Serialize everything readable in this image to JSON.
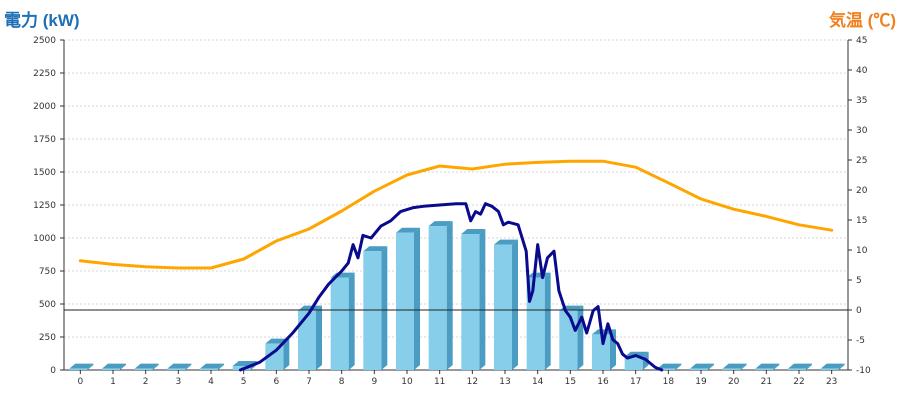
{
  "chart_data": {
    "type": "bar",
    "left_axis_title": "電力 (kW)",
    "right_axis_title": "気温 (℃)",
    "categories": [
      "0",
      "1",
      "2",
      "3",
      "4",
      "5",
      "6",
      "7",
      "8",
      "9",
      "10",
      "11",
      "12",
      "13",
      "14",
      "15",
      "16",
      "17",
      "18",
      "19",
      "20",
      "21",
      "22",
      "23"
    ],
    "y_left": {
      "min": 0,
      "max": 2500,
      "ticks": [
        0,
        250,
        500,
        750,
        1000,
        1250,
        1500,
        1750,
        2000,
        2250,
        2500
      ]
    },
    "y_right": {
      "min": -10,
      "max": 45,
      "ticks": [
        -10,
        -5,
        0,
        5,
        10,
        15,
        20,
        25,
        30,
        35,
        40,
        45
      ]
    },
    "reference_line": {
      "axis": "right",
      "value": 0
    },
    "grid": true,
    "colors": {
      "bar": "#87ceeb",
      "bar_side": "#4a9cc2",
      "power_line": "#0a0a8c",
      "temp_line": "#ffa500",
      "left_title": "#1f6fb5",
      "right_title": "#f08020"
    },
    "series": [
      {
        "axis": "left",
        "kind": "bar",
        "x": [
          0,
          1,
          2,
          3,
          4,
          5,
          6,
          7,
          8,
          9,
          10,
          11,
          12,
          13,
          14,
          15,
          16,
          17,
          18,
          19,
          20,
          21,
          22,
          23
        ],
        "values": [
          10,
          10,
          10,
          10,
          10,
          30,
          200,
          450,
          700,
          900,
          1040,
          1090,
          1030,
          950,
          700,
          450,
          270,
          100,
          10,
          10,
          10,
          10,
          10,
          10
        ]
      },
      {
        "axis": "left",
        "kind": "line",
        "x": [
          4.9,
          5,
          5.5,
          6,
          6.5,
          7,
          7.3,
          7.6,
          8,
          8.2,
          8.35,
          8.5,
          8.65,
          8.9,
          9.2,
          9.5,
          9.8,
          10.2,
          10.5,
          11,
          11.5,
          11.8,
          11.95,
          12.1,
          12.25,
          12.4,
          12.6,
          12.8,
          12.95,
          13.1,
          13.4,
          13.65,
          13.75,
          13.85,
          14,
          14.15,
          14.3,
          14.5,
          14.65,
          14.85,
          15,
          15.15,
          15.35,
          15.5,
          15.7,
          15.85,
          16,
          16.15,
          16.3,
          16.45,
          16.6,
          16.75,
          17,
          17.3,
          17.6,
          17.8
        ],
        "values": [
          0,
          10,
          60,
          150,
          280,
          430,
          550,
          650,
          750,
          810,
          950,
          850,
          1020,
          1000,
          1090,
          1130,
          1200,
          1230,
          1240,
          1250,
          1260,
          1260,
          1130,
          1200,
          1180,
          1260,
          1240,
          1200,
          1100,
          1120,
          1100,
          900,
          520,
          600,
          950,
          700,
          850,
          900,
          600,
          450,
          400,
          300,
          400,
          280,
          450,
          480,
          200,
          350,
          230,
          200,
          120,
          90,
          110,
          80,
          20,
          0
        ]
      },
      {
        "axis": "right",
        "kind": "line",
        "x": [
          0,
          1,
          2,
          3,
          4,
          5,
          6,
          7,
          8,
          9,
          10,
          11,
          12,
          13,
          14,
          15,
          16,
          17,
          18,
          19,
          20,
          21,
          22,
          23
        ],
        "values": [
          8.2,
          7.6,
          7.2,
          7.0,
          7.0,
          8.5,
          11.5,
          13.5,
          16.5,
          19.8,
          22.5,
          24.0,
          23.5,
          24.3,
          24.6,
          24.8,
          24.8,
          23.8,
          21.2,
          18.5,
          16.8,
          15.6,
          14.2,
          13.3
        ]
      }
    ]
  }
}
